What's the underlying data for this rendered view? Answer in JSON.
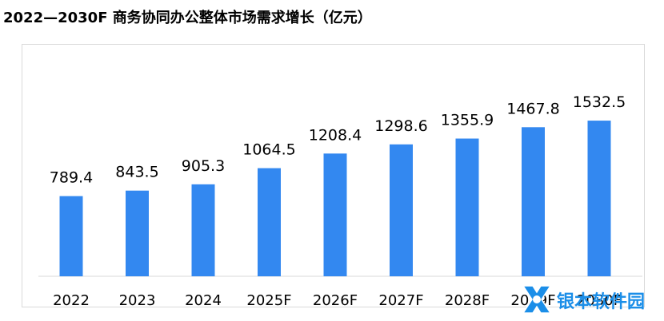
{
  "title": "2022—2030F 商务协同办公整体市场需求增长（亿元）",
  "watermark": {
    "text": "银本软件园",
    "icon": "x-logo-icon"
  },
  "colors": {
    "bar": "#3388f0",
    "axis": "#d9d9d9",
    "text": "#000000",
    "watermark": "#1b8ee8"
  },
  "chart_data": {
    "type": "bar",
    "title": "2022—2030F 商务协同办公整体市场需求增长（亿元）",
    "categories": [
      "2022",
      "2023",
      "2024",
      "2025F",
      "2026F",
      "2027F",
      "2028F",
      "2029F",
      "2030F"
    ],
    "values": [
      789.4,
      843.5,
      905.3,
      1064.5,
      1208.4,
      1298.6,
      1355.9,
      1467.8,
      1532.5
    ],
    "data_labels": [
      "789.4",
      "843.5",
      "905.3",
      "1064.5",
      "1208.4",
      "1298.6",
      "1355.9",
      "1467.8",
      "1532.5"
    ],
    "xlabel": "",
    "ylabel": "",
    "ylim": [
      0,
      1800
    ],
    "grid": false,
    "legend": "none"
  }
}
